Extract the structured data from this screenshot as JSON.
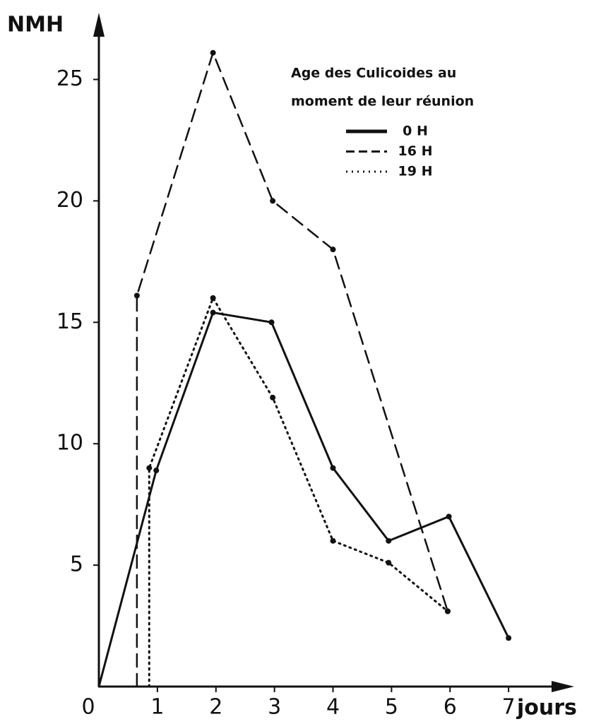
{
  "chart_data": {
    "type": "line",
    "y_label": "NMH",
    "x_label": "jours",
    "legend_title": [
      "Age des Culicoides au",
      "moment de leur réunion"
    ],
    "xlim": [
      0,
      8
    ],
    "ylim": [
      0,
      27.4
    ],
    "xticks": [
      0,
      1,
      2,
      3,
      4,
      5,
      6,
      7
    ],
    "yticks": [
      5,
      10,
      15,
      20,
      25
    ],
    "series": [
      {
        "name": "0 H",
        "color": "#111111",
        "style": "solid",
        "x": [
          0,
          0.98,
          1.95,
          2.95,
          4,
          4.95,
          5.98,
          7
        ],
        "values": [
          0,
          8.9,
          15.4,
          15,
          9,
          6,
          7,
          2
        ]
      },
      {
        "name": "16 H",
        "color": "#111111",
        "style": "dashed",
        "x": [
          0.65,
          0.65,
          1.95,
          2.97,
          4,
          5.96
        ],
        "values": [
          0,
          16.1,
          26.1,
          20,
          18,
          3.1
        ]
      },
      {
        "name": "19 H",
        "color": "#111111",
        "style": "dotted",
        "x": [
          0.86,
          0.86,
          1.95,
          2.97,
          4,
          4.95,
          5.96
        ],
        "values": [
          0,
          9,
          16,
          11.9,
          6,
          5.1,
          3.1
        ]
      }
    ]
  }
}
